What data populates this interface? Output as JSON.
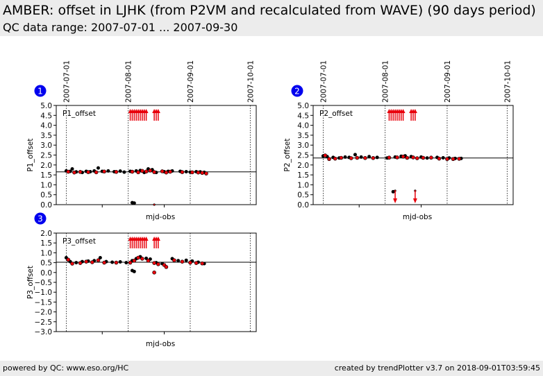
{
  "header": {
    "title": "AMBER: offset in LJHK (from P2VM and recalculated from WAVE) (90 days period)",
    "subtitle": "QC data range: 2007-07-01 ... 2007-09-30"
  },
  "footer": {
    "left": "powered by QC: www.eso.org/HC",
    "right": "created by trendPlotter v3.7 on 2018-09-01T03:59:45"
  },
  "colors": {
    "series_black": "#000000",
    "series_red": "#e8000b",
    "badge": "#0000ee",
    "outlier_arrow": "#e8000b"
  },
  "chart_data": [
    {
      "type": "scatter",
      "panel_number": "1",
      "inner_label": "P1_offset",
      "xlabel": "mjd-obs",
      "ylabel": "P1_offset",
      "ylim": [
        0.0,
        5.0
      ],
      "yticks": [
        "0.0",
        "0.5",
        "1.0",
        "1.5",
        "2.0",
        "2.5",
        "3.0",
        "3.5",
        "4.0",
        "4.5",
        "5.0"
      ],
      "date_ticks": [
        "2007-07-01",
        "2007-08-01",
        "2007-09-01",
        "2007-10-01"
      ],
      "reference_line": 1.65,
      "series": [
        {
          "color": "black",
          "points": [
            [
              "2007-07-01",
              1.7
            ],
            [
              "2007-07-03",
              1.68
            ],
            [
              "2007-07-04",
              1.8
            ],
            [
              "2007-07-06",
              1.65
            ],
            [
              "2007-07-09",
              1.62
            ],
            [
              "2007-07-11",
              1.68
            ],
            [
              "2007-07-13",
              1.66
            ],
            [
              "2007-07-15",
              1.7
            ],
            [
              "2007-07-17",
              1.85
            ],
            [
              "2007-07-19",
              1.68
            ],
            [
              "2007-07-22",
              1.7
            ],
            [
              "2007-07-25",
              1.66
            ],
            [
              "2007-07-28",
              1.69
            ],
            [
              "2007-07-30",
              1.64
            ],
            [
              "2007-08-02",
              1.68
            ],
            [
              "2007-08-05",
              1.7
            ],
            [
              "2007-08-07",
              1.72
            ],
            [
              "2007-08-09",
              1.62
            ],
            [
              "2007-08-11",
              1.8
            ],
            [
              "2007-08-13",
              1.76
            ],
            [
              "2007-08-15",
              1.62
            ],
            [
              "2007-08-19",
              1.66
            ],
            [
              "2007-08-21",
              1.68
            ],
            [
              "2007-08-23",
              1.7
            ],
            [
              "2007-08-27",
              1.68
            ],
            [
              "2007-08-30",
              1.66
            ],
            [
              "2007-09-01",
              1.64
            ],
            [
              "2007-09-04",
              1.66
            ],
            [
              "2007-09-06",
              1.65
            ],
            [
              "2007-09-08",
              1.63
            ],
            [
              "2007-08-03",
              0.1
            ],
            [
              "2007-08-04",
              0.08
            ]
          ]
        },
        {
          "color": "red",
          "points": [
            [
              "2007-07-02",
              1.66
            ],
            [
              "2007-07-05",
              1.62
            ],
            [
              "2007-07-08",
              1.65
            ],
            [
              "2007-07-12",
              1.64
            ],
            [
              "2007-07-16",
              1.63
            ],
            [
              "2007-07-20",
              1.67
            ],
            [
              "2007-07-26",
              1.65
            ],
            [
              "2007-08-03",
              1.66
            ],
            [
              "2007-08-06",
              1.63
            ],
            [
              "2007-08-08",
              1.7
            ],
            [
              "2007-08-10",
              1.67
            ],
            [
              "2007-08-12",
              1.72
            ],
            [
              "2007-08-14",
              1.64
            ],
            [
              "2007-08-18",
              1.68
            ],
            [
              "2007-08-20",
              1.62
            ],
            [
              "2007-08-22",
              1.66
            ],
            [
              "2007-08-28",
              1.64
            ],
            [
              "2007-09-02",
              1.63
            ],
            [
              "2007-09-05",
              1.62
            ],
            [
              "2007-09-07",
              1.6
            ],
            [
              "2007-09-09",
              1.57
            ],
            [
              "2007-08-14",
              0.0
            ]
          ]
        }
      ],
      "arrows_up": [
        "2007-08-02",
        "2007-08-03",
        "2007-08-04",
        "2007-08-05",
        "2007-08-06",
        "2007-08-07",
        "2007-08-08",
        "2007-08-09",
        "2007-08-10",
        "2007-08-14",
        "2007-08-15",
        "2007-08-16"
      ],
      "arrows_down": []
    },
    {
      "type": "scatter",
      "panel_number": "2",
      "inner_label": "P2_offset",
      "xlabel": "mjd-obs",
      "ylabel": "P2_offset",
      "ylim": [
        0.0,
        5.0
      ],
      "yticks": [
        "0.0",
        "0.5",
        "1.0",
        "1.5",
        "2.0",
        "2.5",
        "3.0",
        "3.5",
        "4.0",
        "4.5",
        "5.0"
      ],
      "date_ticks": [
        "2007-07-01",
        "2007-08-01",
        "2007-09-01",
        "2007-10-01"
      ],
      "reference_line": 2.35,
      "series": [
        {
          "color": "black",
          "points": [
            [
              "2007-07-01",
              2.45
            ],
            [
              "2007-07-03",
              2.42
            ],
            [
              "2007-07-06",
              2.38
            ],
            [
              "2007-07-09",
              2.35
            ],
            [
              "2007-07-12",
              2.4
            ],
            [
              "2007-07-14",
              2.38
            ],
            [
              "2007-07-17",
              2.52
            ],
            [
              "2007-07-20",
              2.4
            ],
            [
              "2007-07-24",
              2.42
            ],
            [
              "2007-07-28",
              2.38
            ],
            [
              "2007-08-02",
              2.35
            ],
            [
              "2007-08-06",
              2.4
            ],
            [
              "2007-08-09",
              2.44
            ],
            [
              "2007-08-11",
              2.46
            ],
            [
              "2007-08-14",
              2.42
            ],
            [
              "2007-08-19",
              2.4
            ],
            [
              "2007-08-22",
              2.35
            ],
            [
              "2007-08-27",
              2.38
            ],
            [
              "2007-08-30",
              2.36
            ],
            [
              "2007-09-02",
              2.35
            ],
            [
              "2007-09-05",
              2.33
            ],
            [
              "2007-09-08",
              2.33
            ],
            [
              "2007-08-05",
              0.65
            ]
          ]
        },
        {
          "color": "red",
          "points": [
            [
              "2007-07-02",
              2.48
            ],
            [
              "2007-07-04",
              2.3
            ],
            [
              "2007-07-07",
              2.32
            ],
            [
              "2007-07-10",
              2.36
            ],
            [
              "2007-07-15",
              2.34
            ],
            [
              "2007-07-18",
              2.36
            ],
            [
              "2007-07-22",
              2.35
            ],
            [
              "2007-07-26",
              2.35
            ],
            [
              "2007-08-03",
              2.37
            ],
            [
              "2007-08-07",
              2.38
            ],
            [
              "2007-08-10",
              2.42
            ],
            [
              "2007-08-12",
              2.36
            ],
            [
              "2007-08-15",
              2.38
            ],
            [
              "2007-08-17",
              2.34
            ],
            [
              "2007-08-20",
              2.36
            ],
            [
              "2007-08-24",
              2.37
            ],
            [
              "2007-08-28",
              2.32
            ],
            [
              "2007-09-01",
              2.3
            ],
            [
              "2007-09-04",
              2.3
            ],
            [
              "2007-09-07",
              2.31
            ],
            [
              "2007-08-06",
              0.7
            ],
            [
              "2007-08-16",
              0.7
            ]
          ]
        }
      ],
      "arrows_up": [
        "2007-08-03",
        "2007-08-04",
        "2007-08-05",
        "2007-08-06",
        "2007-08-07",
        "2007-08-08",
        "2007-08-09",
        "2007-08-10",
        "2007-08-14",
        "2007-08-15",
        "2007-08-16"
      ],
      "arrows_down": [
        "2007-08-06",
        "2007-08-16"
      ]
    },
    {
      "type": "scatter",
      "panel_number": "3",
      "inner_label": "P3_offset",
      "xlabel": "mjd-obs",
      "ylabel": "P3_offset",
      "ylim": [
        -3.0,
        2.0
      ],
      "yticks": [
        "−3.0",
        "−2.5",
        "−2.0",
        "−1.5",
        "−1.0",
        "−0.5",
        "0.0",
        "0.5",
        "1.0",
        "1.5",
        "2.0"
      ],
      "date_ticks": [
        "2007-07-01",
        "2007-08-01",
        "2007-09-01",
        "2007-10-01"
      ],
      "reference_line": 0.52,
      "series": [
        {
          "color": "black",
          "points": [
            [
              "2007-07-01",
              0.75
            ],
            [
              "2007-07-03",
              0.55
            ],
            [
              "2007-07-06",
              0.5
            ],
            [
              "2007-07-09",
              0.55
            ],
            [
              "2007-07-12",
              0.58
            ],
            [
              "2007-07-15",
              0.6
            ],
            [
              "2007-07-18",
              0.75
            ],
            [
              "2007-07-21",
              0.55
            ],
            [
              "2007-07-24",
              0.52
            ],
            [
              "2007-07-28",
              0.54
            ],
            [
              "2007-07-31",
              0.5
            ],
            [
              "2007-08-03",
              0.6
            ],
            [
              "2007-08-05",
              0.7
            ],
            [
              "2007-08-07",
              0.8
            ],
            [
              "2007-08-10",
              0.72
            ],
            [
              "2007-08-12",
              0.68
            ],
            [
              "2007-08-15",
              0.5
            ],
            [
              "2007-08-18",
              0.45
            ],
            [
              "2007-08-23",
              0.7
            ],
            [
              "2007-08-26",
              0.6
            ],
            [
              "2007-08-30",
              0.62
            ],
            [
              "2007-09-02",
              0.58
            ],
            [
              "2007-09-05",
              0.52
            ],
            [
              "2007-09-08",
              0.45
            ],
            [
              "2007-08-03",
              0.1
            ],
            [
              "2007-08-04",
              0.05
            ]
          ]
        },
        {
          "color": "red",
          "points": [
            [
              "2007-07-02",
              0.65
            ],
            [
              "2007-07-04",
              0.45
            ],
            [
              "2007-07-08",
              0.48
            ],
            [
              "2007-07-11",
              0.55
            ],
            [
              "2007-07-14",
              0.52
            ],
            [
              "2007-07-17",
              0.62
            ],
            [
              "2007-07-20",
              0.5
            ],
            [
              "2007-07-26",
              0.5
            ],
            [
              "2007-08-02",
              0.5
            ],
            [
              "2007-08-04",
              0.6
            ],
            [
              "2007-08-06",
              0.75
            ],
            [
              "2007-08-08",
              0.7
            ],
            [
              "2007-08-11",
              0.6
            ],
            [
              "2007-08-14",
              0.48
            ],
            [
              "2007-08-16",
              0.42
            ],
            [
              "2007-08-19",
              0.38
            ],
            [
              "2007-08-20",
              0.28
            ],
            [
              "2007-08-24",
              0.62
            ],
            [
              "2007-08-28",
              0.55
            ],
            [
              "2007-09-01",
              0.5
            ],
            [
              "2007-09-04",
              0.48
            ],
            [
              "2007-09-07",
              0.46
            ],
            [
              "2007-08-14",
              0.0
            ]
          ]
        }
      ],
      "arrows_up": [
        "2007-08-02",
        "2007-08-03",
        "2007-08-04",
        "2007-08-05",
        "2007-08-06",
        "2007-08-07",
        "2007-08-08",
        "2007-08-09",
        "2007-08-10",
        "2007-08-14",
        "2007-08-15",
        "2007-08-16"
      ],
      "arrows_down": []
    }
  ]
}
